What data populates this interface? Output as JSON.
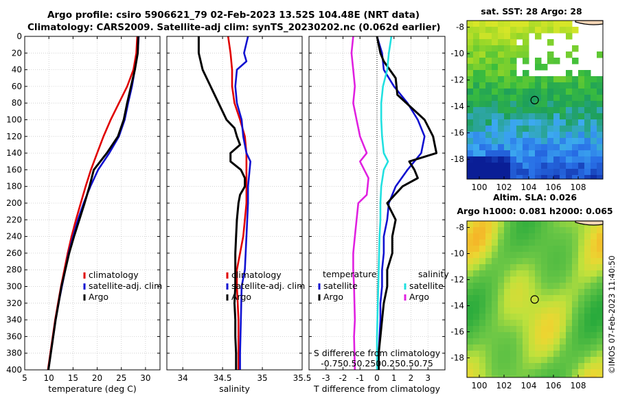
{
  "titles": {
    "line1": "Argo profile: csiro 5906621_79 02-Feb-2023 13.52S 104.48E (NRT data)",
    "line2": "Climatology: CARS2009. Satellite-adj clim: synTS_20230202.nc (0.062d earlier)"
  },
  "colors": {
    "climatology": "#e00000",
    "satellite": "#1010d0",
    "argo": "#000000",
    "salt_sat": "#20e0e0",
    "salt_argo": "#e020e0"
  },
  "chart_data": [
    {
      "type": "line",
      "id": "temperature",
      "xlabel": "temperature (deg C)",
      "ylabel": "",
      "xlim": [
        5,
        33
      ],
      "ylim": [
        400,
        0
      ],
      "xticks": [
        5,
        10,
        15,
        20,
        25,
        30
      ],
      "yticks": [
        0,
        20,
        40,
        60,
        80,
        100,
        120,
        140,
        160,
        180,
        200,
        220,
        240,
        260,
        280,
        300,
        320,
        340,
        360,
        380,
        400
      ],
      "grid": true,
      "legend": {
        "position": "lower-right",
        "entries": [
          "climatology",
          "satellite-adj. clim",
          "Argo"
        ]
      },
      "series": [
        {
          "name": "climatology",
          "color": "#e00000",
          "points": [
            [
              28.3,
              0
            ],
            [
              28.1,
              20
            ],
            [
              27.5,
              40
            ],
            [
              26.2,
              60
            ],
            [
              24.5,
              80
            ],
            [
              22.8,
              100
            ],
            [
              21.3,
              120
            ],
            [
              20,
              140
            ],
            [
              18.7,
              160
            ],
            [
              17.6,
              180
            ],
            [
              16.6,
              200
            ],
            [
              15.6,
              220
            ],
            [
              14.7,
              240
            ],
            [
              13.9,
              260
            ],
            [
              13.2,
              280
            ],
            [
              12.5,
              300
            ],
            [
              11.9,
              320
            ],
            [
              11.3,
              340
            ],
            [
              10.8,
              360
            ],
            [
              10.3,
              380
            ],
            [
              9.8,
              400
            ]
          ]
        },
        {
          "name": "satellite-adj. clim",
          "color": "#1010d0",
          "points": [
            [
              28.6,
              0
            ],
            [
              28.4,
              20
            ],
            [
              27.8,
              40
            ],
            [
              27.2,
              60
            ],
            [
              26.4,
              80
            ],
            [
              25.7,
              100
            ],
            [
              24.5,
              120
            ],
            [
              22.5,
              140
            ],
            [
              20.2,
              160
            ],
            [
              18.6,
              180
            ],
            [
              17.2,
              200
            ],
            [
              16,
              220
            ],
            [
              15,
              240
            ],
            [
              14.1,
              260
            ],
            [
              13.4,
              280
            ],
            [
              12.7,
              300
            ],
            [
              12,
              320
            ],
            [
              11.4,
              340
            ],
            [
              10.9,
              360
            ],
            [
              10.4,
              380
            ],
            [
              9.9,
              400
            ]
          ]
        },
        {
          "name": "Argo",
          "color": "#000000",
          "points": [
            [
              28.5,
              0
            ],
            [
              28.4,
              20
            ],
            [
              27.8,
              40
            ],
            [
              27,
              60
            ],
            [
              26.2,
              80
            ],
            [
              25.5,
              100
            ],
            [
              24.3,
              120
            ],
            [
              22,
              140
            ],
            [
              19.3,
              160
            ],
            [
              18.4,
              180
            ],
            [
              17.4,
              200
            ],
            [
              16.3,
              220
            ],
            [
              15.2,
              240
            ],
            [
              14.2,
              260
            ],
            [
              13.4,
              280
            ],
            [
              12.6,
              300
            ],
            [
              12,
              320
            ],
            [
              11.4,
              340
            ],
            [
              10.9,
              360
            ],
            [
              10.4,
              380
            ],
            [
              9.9,
              400
            ]
          ]
        }
      ]
    },
    {
      "type": "line",
      "id": "salinity",
      "xlabel": "salinity",
      "ylabel": "",
      "xlim": [
        33.8,
        35.5
      ],
      "ylim": [
        400,
        0
      ],
      "xticks": [
        34,
        34.5,
        35,
        35.5
      ],
      "yticks": [
        0,
        20,
        40,
        60,
        80,
        100,
        120,
        140,
        160,
        180,
        200,
        220,
        240,
        260,
        280,
        300,
        320,
        340,
        360,
        380,
        400
      ],
      "grid": true,
      "legend": {
        "position": "lower-right",
        "entries": [
          "climatology",
          "satellite-adj. clim",
          "Argo"
        ]
      },
      "series": [
        {
          "name": "climatology",
          "color": "#e00000",
          "points": [
            [
              34.57,
              0
            ],
            [
              34.6,
              20
            ],
            [
              34.62,
              40
            ],
            [
              34.62,
              60
            ],
            [
              34.65,
              80
            ],
            [
              34.72,
              100
            ],
            [
              34.78,
              120
            ],
            [
              34.8,
              140
            ],
            [
              34.8,
              160
            ],
            [
              34.8,
              180
            ],
            [
              34.8,
              200
            ],
            [
              34.78,
              220
            ],
            [
              34.76,
              240
            ],
            [
              34.72,
              260
            ],
            [
              34.68,
              280
            ],
            [
              34.68,
              300
            ],
            [
              34.7,
              340
            ],
            [
              34.7,
              400
            ]
          ]
        },
        {
          "name": "satellite-adj. clim",
          "color": "#1010d0",
          "points": [
            [
              34.82,
              0
            ],
            [
              34.77,
              20
            ],
            [
              34.8,
              30
            ],
            [
              34.68,
              40
            ],
            [
              34.66,
              60
            ],
            [
              34.68,
              80
            ],
            [
              34.74,
              100
            ],
            [
              34.76,
              120
            ],
            [
              34.8,
              140
            ],
            [
              34.85,
              150
            ],
            [
              34.82,
              180
            ],
            [
              34.82,
              200
            ],
            [
              34.8,
              240
            ],
            [
              34.78,
              280
            ],
            [
              34.74,
              300
            ],
            [
              34.73,
              340
            ],
            [
              34.72,
              380
            ],
            [
              34.72,
              400
            ]
          ]
        },
        {
          "name": "Argo",
          "color": "#000000",
          "points": [
            [
              34.2,
              0
            ],
            [
              34.2,
              20
            ],
            [
              34.25,
              40
            ],
            [
              34.35,
              60
            ],
            [
              34.45,
              80
            ],
            [
              34.55,
              100
            ],
            [
              34.65,
              110
            ],
            [
              34.68,
              120
            ],
            [
              34.72,
              130
            ],
            [
              34.6,
              140
            ],
            [
              34.6,
              150
            ],
            [
              34.73,
              160
            ],
            [
              34.78,
              170
            ],
            [
              34.78,
              180
            ],
            [
              34.72,
              190
            ],
            [
              34.7,
              200
            ],
            [
              34.68,
              220
            ],
            [
              34.67,
              240
            ],
            [
              34.66,
              260
            ],
            [
              34.66,
              280
            ],
            [
              34.66,
              300
            ],
            [
              34.65,
              320
            ],
            [
              34.66,
              340
            ],
            [
              34.66,
              360
            ],
            [
              34.67,
              380
            ],
            [
              34.67,
              400
            ]
          ]
        }
      ]
    },
    {
      "type": "line",
      "id": "difference",
      "xlabel": "T difference from climatology",
      "ylabel": "",
      "top_xlabel": "S difference from climatology",
      "top_xticks": [
        "-0.75",
        "0.5",
        "0.25",
        "0",
        "0.25",
        "0.5",
        "0.75"
      ],
      "xlim": [
        -4,
        4
      ],
      "ylim": [
        400,
        0
      ],
      "xticks": [
        -3,
        -2,
        -1,
        0,
        1,
        2,
        3
      ],
      "yticks": [
        0,
        20,
        40,
        60,
        80,
        100,
        120,
        140,
        160,
        180,
        200,
        220,
        240,
        260,
        280,
        300,
        320,
        340,
        360,
        380,
        400
      ],
      "grid": true,
      "legend": {
        "temperature_title": "temperature",
        "salinity_title": "salinity",
        "temperature_entries": [
          "satellite",
          "Argo"
        ],
        "salinity_entries": [
          "satellite",
          "Argo"
        ]
      },
      "series": [
        {
          "name": "temperature satellite",
          "color": "#1010d0",
          "points": [
            [
              0,
              0
            ],
            [
              0.3,
              20
            ],
            [
              0.4,
              40
            ],
            [
              1,
              60
            ],
            [
              1.8,
              80
            ],
            [
              2.4,
              100
            ],
            [
              2.8,
              120
            ],
            [
              2.6,
              140
            ],
            [
              1.8,
              160
            ],
            [
              1.1,
              180
            ],
            [
              0.7,
              200
            ],
            [
              0.6,
              220
            ],
            [
              0.4,
              240
            ],
            [
              0.4,
              260
            ],
            [
              0.3,
              280
            ],
            [
              0.3,
              300
            ],
            [
              0.2,
              320
            ],
            [
              0.2,
              340
            ],
            [
              0.15,
              360
            ],
            [
              0.1,
              380
            ],
            [
              0.1,
              400
            ]
          ]
        },
        {
          "name": "temperature Argo",
          "color": "#000000",
          "points": [
            [
              0,
              0
            ],
            [
              0.2,
              20
            ],
            [
              0.4,
              30
            ],
            [
              1.1,
              50
            ],
            [
              1.2,
              70
            ],
            [
              2.8,
              100
            ],
            [
              3.3,
              120
            ],
            [
              3.5,
              140
            ],
            [
              1.9,
              150
            ],
            [
              2.2,
              160
            ],
            [
              2.4,
              170
            ],
            [
              1.5,
              180
            ],
            [
              0.6,
              200
            ],
            [
              1.1,
              220
            ],
            [
              0.9,
              240
            ],
            [
              0.9,
              260
            ],
            [
              0.6,
              280
            ],
            [
              0.6,
              300
            ],
            [
              0.4,
              320
            ],
            [
              0.3,
              340
            ],
            [
              0.2,
              360
            ],
            [
              0.1,
              380
            ],
            [
              0.1,
              400
            ]
          ]
        },
        {
          "name": "salinity satellite",
          "color": "#20e0e0",
          "points": [
            [
              0.85,
              0
            ],
            [
              0.7,
              20
            ],
            [
              0.6,
              40
            ],
            [
              0.35,
              60
            ],
            [
              0.25,
              80
            ],
            [
              0.25,
              100
            ],
            [
              0.3,
              120
            ],
            [
              0.4,
              140
            ],
            [
              0.65,
              150
            ],
            [
              0.4,
              160
            ],
            [
              0.25,
              180
            ],
            [
              0.2,
              200
            ],
            [
              0.2,
              220
            ],
            [
              0.15,
              240
            ],
            [
              0.1,
              280
            ],
            [
              0.05,
              320
            ],
            [
              0,
              360
            ],
            [
              0,
              400
            ]
          ]
        },
        {
          "name": "salinity Argo",
          "color": "#e020e0",
          "points": [
            [
              -1.4,
              0
            ],
            [
              -1.5,
              20
            ],
            [
              -1.4,
              40
            ],
            [
              -1.3,
              60
            ],
            [
              -1.4,
              80
            ],
            [
              -1.2,
              100
            ],
            [
              -1,
              120
            ],
            [
              -0.6,
              140
            ],
            [
              -1,
              150
            ],
            [
              -0.5,
              170
            ],
            [
              -0.6,
              190
            ],
            [
              -1.1,
              200
            ],
            [
              -1.2,
              220
            ],
            [
              -1.3,
              240
            ],
            [
              -1.4,
              260
            ],
            [
              -1.4,
              280
            ],
            [
              -1.35,
              300
            ],
            [
              -1.3,
              340
            ],
            [
              -1.35,
              360
            ],
            [
              -1.3,
              400
            ]
          ]
        }
      ]
    },
    {
      "type": "heatmap",
      "id": "sst_map",
      "title": "sat. SST: 28 Argo: 28",
      "xlim": [
        99,
        110
      ],
      "ylim": [
        -19.5,
        -7.5
      ],
      "xticks": [
        100,
        102,
        104,
        106,
        108
      ],
      "yticks": [
        -8,
        -10,
        -12,
        -14,
        -16,
        -18
      ],
      "marker": {
        "lon": 104.48,
        "lat": -13.52
      }
    },
    {
      "type": "heatmap",
      "id": "sla_map",
      "title": "Altim. SLA: 0.026",
      "subtitle": "Argo h1000: 0.081 h2000: 0.065",
      "xlim": [
        99,
        110
      ],
      "ylim": [
        -19.5,
        -7.5
      ],
      "xticks": [
        100,
        102,
        104,
        106,
        108
      ],
      "yticks": [
        -8,
        -10,
        -12,
        -14,
        -16,
        -18
      ],
      "marker": {
        "lon": 104.48,
        "lat": -13.52
      }
    }
  ],
  "stamp": "©IMOS 07-Feb-2023 11:40:50"
}
